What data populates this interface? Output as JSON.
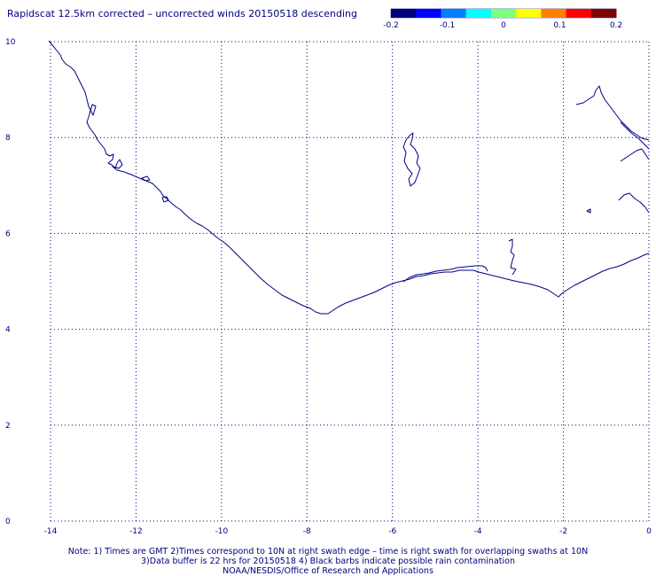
{
  "title": "Rapidscat 12.5km corrected – uncorrected winds 20150518 descending",
  "colorbar": {
    "ticks": [
      "-0.2",
      "-0.1",
      "0",
      "0.1",
      "0.2"
    ],
    "colors": [
      "#00007f",
      "#0000ff",
      "#007fff",
      "#00ffff",
      "#7fff7f",
      "#ffff00",
      "#ff7f00",
      "#ff0000",
      "#7f0000"
    ]
  },
  "map": {
    "x_ticks": [
      "-14",
      "-12",
      "-10",
      "-8",
      "-6",
      "-4",
      "-2",
      "0"
    ],
    "y_ticks": [
      "0",
      "2",
      "4",
      "6",
      "8",
      "10"
    ],
    "xlim": [
      -14,
      0
    ],
    "ylim": [
      0,
      10
    ],
    "grid": "dotted",
    "line_color": "#000080"
  },
  "notes": {
    "line1": "Note: 1) Times are GMT 2)Times correspond to 10N at right swath edge – time is right swath for overlapping swaths at 10N",
    "line2": "3)Data buffer is 22 hrs for 20150518 4) Black barbs indicate possible rain contamination",
    "line3": "NOAA/NESDIS/Office of Research and Applications"
  }
}
